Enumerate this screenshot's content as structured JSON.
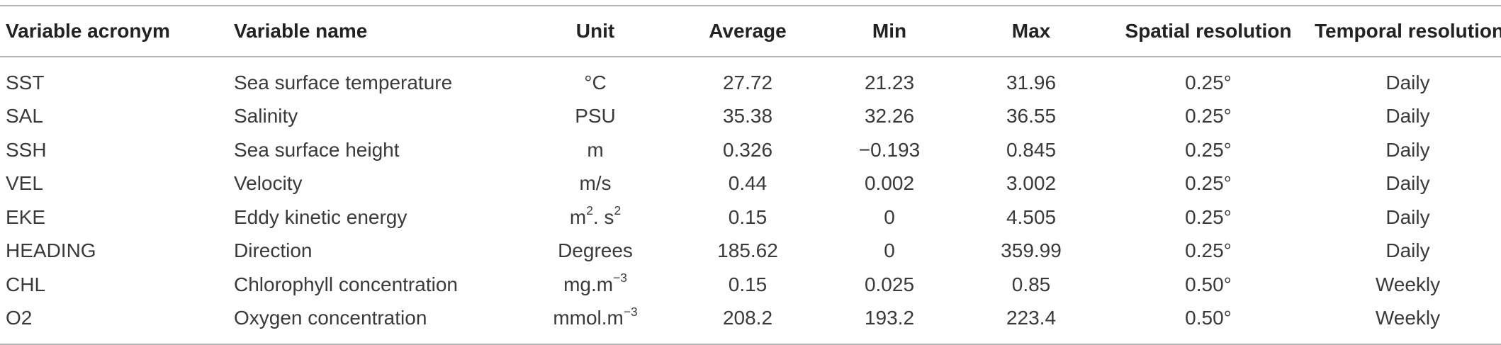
{
  "table": {
    "headers": {
      "acronym": "Variable acronym",
      "name": "Variable name",
      "unit": "Unit",
      "average": "Average",
      "min": "Min",
      "max": "Max",
      "spatial": "Spatial resolution",
      "temporal": "Temporal resolution"
    },
    "rows": [
      {
        "acronym": "SST",
        "name": "Sea surface temperature",
        "unit": "°C",
        "unit_sup": "",
        "unit_mid": "",
        "unit_sup2": "",
        "average": "27.72",
        "min": "21.23",
        "max": "31.96",
        "spatial": "0.25°",
        "temporal": "Daily"
      },
      {
        "acronym": "SAL",
        "name": "Salinity",
        "unit": "PSU",
        "unit_sup": "",
        "unit_mid": "",
        "unit_sup2": "",
        "average": "35.38",
        "min": "32.26",
        "max": "36.55",
        "spatial": "0.25°",
        "temporal": "Daily"
      },
      {
        "acronym": "SSH",
        "name": "Sea surface height",
        "unit": "m",
        "unit_sup": "",
        "unit_mid": "",
        "unit_sup2": "",
        "average": "0.326",
        "min": "−0.193",
        "max": "0.845",
        "spatial": "0.25°",
        "temporal": "Daily"
      },
      {
        "acronym": "VEL",
        "name": "Velocity",
        "unit": "m/s",
        "unit_sup": "",
        "unit_mid": "",
        "unit_sup2": "",
        "average": "0.44",
        "min": "0.002",
        "max": "3.002",
        "spatial": "0.25°",
        "temporal": "Daily"
      },
      {
        "acronym": "EKE",
        "name": "Eddy kinetic energy",
        "unit": "m",
        "unit_sup": "2",
        "unit_mid": ". s",
        "unit_sup2": "2",
        "average": "0.15",
        "min": "0",
        "max": "4.505",
        "spatial": "0.25°",
        "temporal": "Daily"
      },
      {
        "acronym": "HEADING",
        "name": "Direction",
        "unit": "Degrees",
        "unit_sup": "",
        "unit_mid": "",
        "unit_sup2": "",
        "average": "185.62",
        "min": "0",
        "max": "359.99",
        "spatial": "0.25°",
        "temporal": "Daily"
      },
      {
        "acronym": "CHL",
        "name": "Chlorophyll concentration",
        "unit": "mg.m",
        "unit_sup": "−3",
        "unit_mid": "",
        "unit_sup2": "",
        "average": "0.15",
        "min": "0.025",
        "max": "0.85",
        "spatial": "0.50°",
        "temporal": "Weekly"
      },
      {
        "acronym": "O2",
        "name": "Oxygen concentration",
        "unit": "mmol.m",
        "unit_sup": "−3",
        "unit_mid": "",
        "unit_sup2": "",
        "average": "208.2",
        "min": "193.2",
        "max": "223.4",
        "spatial": "0.50°",
        "temporal": "Weekly"
      }
    ]
  }
}
